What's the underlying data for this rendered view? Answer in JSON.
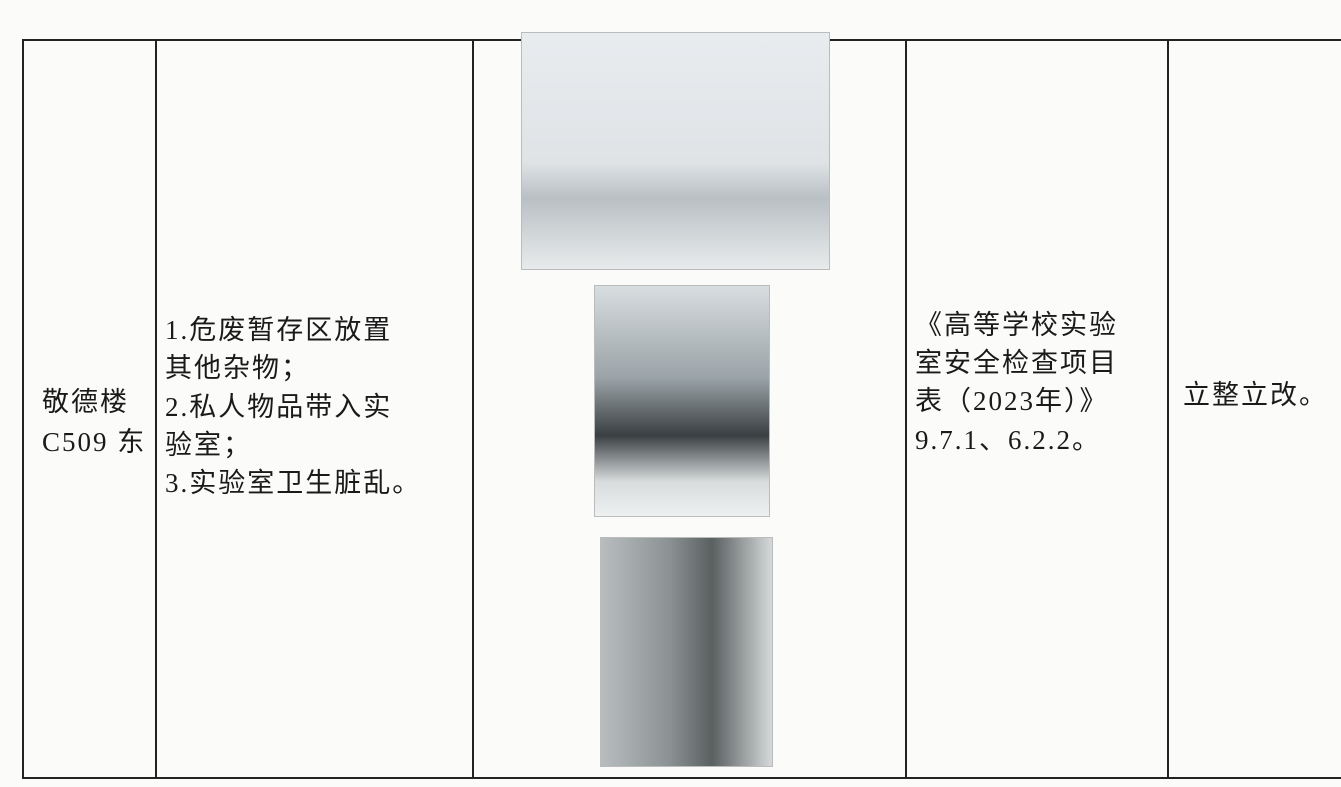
{
  "table": {
    "row": {
      "location": [
        "敬德楼",
        "C509 东"
      ],
      "issues": [
        "1.危废暂存区放置",
        "其他杂物；",
        "2.私人物品带入实",
        "验室；",
        "3.实验室卫生脏乱。"
      ],
      "reference": [
        "《高等学校实验",
        "室安全检查项目",
        "表（2023年）》",
        "9.7.1、6.2.2。"
      ],
      "action": "立整立改。"
    }
  }
}
